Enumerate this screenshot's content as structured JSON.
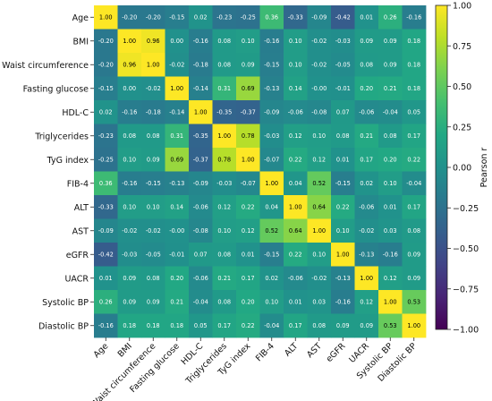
{
  "chart_data": {
    "type": "heatmap",
    "variables": [
      "Age",
      "BMI",
      "Waist circumference",
      "Fasting glucose",
      "HDL-C",
      "Triglycerides",
      "TyG index",
      "FIB-4",
      "ALT",
      "AST",
      "eGFR",
      "UACR",
      "Systolic BP",
      "Diastolic BP"
    ],
    "values": [
      [
        "1.00",
        "-0.20",
        "-0.20",
        "-0.15",
        "0.02",
        "-0.23",
        "-0.25",
        "0.36",
        "-0.33",
        "-0.09",
        "-0.42",
        "0.01",
        "0.26",
        "-0.16"
      ],
      [
        "-0.20",
        "1.00",
        "0.96",
        "0.00",
        "-0.16",
        "0.08",
        "0.10",
        "-0.16",
        "0.10",
        "-0.02",
        "-0.03",
        "0.09",
        "0.09",
        "0.18"
      ],
      [
        "-0.20",
        "0.96",
        "1.00",
        "-0.02",
        "-0.18",
        "0.08",
        "0.09",
        "-0.15",
        "0.10",
        "-0.02",
        "-0.05",
        "0.08",
        "0.09",
        "0.18"
      ],
      [
        "-0.15",
        "0.00",
        "-0.02",
        "1.00",
        "-0.14",
        "0.31",
        "0.69",
        "-0.13",
        "0.14",
        "-0.00",
        "-0.01",
        "0.20",
        "0.21",
        "0.18"
      ],
      [
        "0.02",
        "-0.16",
        "-0.18",
        "-0.14",
        "1.00",
        "-0.35",
        "-0.37",
        "-0.09",
        "-0.06",
        "-0.08",
        "0.07",
        "-0.06",
        "-0.04",
        "0.05"
      ],
      [
        "-0.23",
        "0.08",
        "0.08",
        "0.31",
        "-0.35",
        "1.00",
        "0.78",
        "-0.03",
        "0.12",
        "0.10",
        "0.08",
        "0.21",
        "0.08",
        "0.17"
      ],
      [
        "-0.25",
        "0.10",
        "0.09",
        "0.69",
        "-0.37",
        "0.78",
        "1.00",
        "-0.07",
        "0.22",
        "0.12",
        "0.01",
        "0.17",
        "0.20",
        "0.22"
      ],
      [
        "0.36",
        "-0.16",
        "-0.15",
        "-0.13",
        "-0.09",
        "-0.03",
        "-0.07",
        "1.00",
        "0.04",
        "0.52",
        "-0.15",
        "0.02",
        "0.10",
        "-0.04"
      ],
      [
        "-0.33",
        "0.10",
        "0.10",
        "0.14",
        "-0.06",
        "0.12",
        "0.22",
        "0.04",
        "1.00",
        "0.64",
        "0.22",
        "-0.06",
        "0.01",
        "0.17"
      ],
      [
        "-0.09",
        "-0.02",
        "-0.02",
        "-0.00",
        "-0.08",
        "0.10",
        "0.12",
        "0.52",
        "0.64",
        "1.00",
        "0.10",
        "-0.02",
        "0.03",
        "0.08"
      ],
      [
        "-0.42",
        "-0.03",
        "-0.05",
        "-0.01",
        "0.07",
        "0.08",
        "0.01",
        "-0.15",
        "0.22",
        "0.10",
        "1.00",
        "-0.13",
        "-0.16",
        "0.09"
      ],
      [
        "0.01",
        "0.09",
        "0.08",
        "0.20",
        "-0.06",
        "0.21",
        "0.17",
        "0.02",
        "-0.06",
        "-0.02",
        "-0.13",
        "1.00",
        "0.12",
        "0.09"
      ],
      [
        "0.26",
        "0.09",
        "0.09",
        "0.21",
        "-0.04",
        "0.08",
        "0.20",
        "0.10",
        "0.01",
        "0.03",
        "-0.16",
        "0.12",
        "1.00",
        "0.53"
      ],
      [
        "-0.16",
        "0.18",
        "0.18",
        "0.18",
        "0.05",
        "0.17",
        "0.22",
        "-0.04",
        "0.17",
        "0.08",
        "0.09",
        "0.09",
        "0.53",
        "1.00"
      ]
    ],
    "colorbar": {
      "label": "Pearson r",
      "range": [
        -1.0,
        1.0
      ],
      "ticks": [
        "1.00",
        "0.75",
        "0.50",
        "0.25",
        "0.00",
        "−0.25",
        "−0.50",
        "−0.75",
        "−1.00"
      ],
      "colormap": "viridis"
    },
    "legend_position": "right"
  }
}
